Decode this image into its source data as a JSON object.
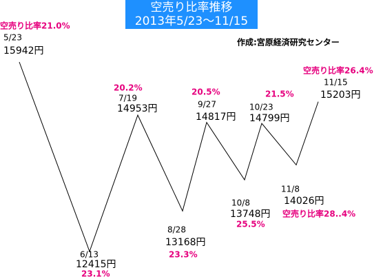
{
  "chart_data": {
    "type": "line",
    "title": [
      "空売り比率推移",
      "2013年5/23～11/15"
    ],
    "subtitle": "作成:宮原経済研究センター",
    "categories": [
      "5/23",
      "6/13",
      "7/19",
      "8/28",
      "9/27",
      "10/8",
      "10/23",
      "11/8",
      "11/15"
    ],
    "values": [
      15942,
      12415,
      14953,
      13168,
      14817,
      13748,
      14799,
      14026,
      15203
    ],
    "value_labels": [
      "15942円",
      "12415円",
      "14953円",
      "13168円",
      "14817円",
      "13748円",
      "14799円",
      "14026円",
      "15203円"
    ],
    "color": "#000000",
    "ratios": [
      21.0,
      23.1,
      20.2,
      23.3,
      20.5,
      25.5,
      21.5,
      28.4,
      26.4
    ],
    "ratio_labels": [
      "空売り比率21.0%",
      "23.1%",
      "20.2%",
      "23.3%",
      "20.5%",
      "25.5%",
      "21.5%",
      "空売り比率28..4%",
      "空売り比率26.4%"
    ],
    "ratio_color": "#e6007e"
  }
}
